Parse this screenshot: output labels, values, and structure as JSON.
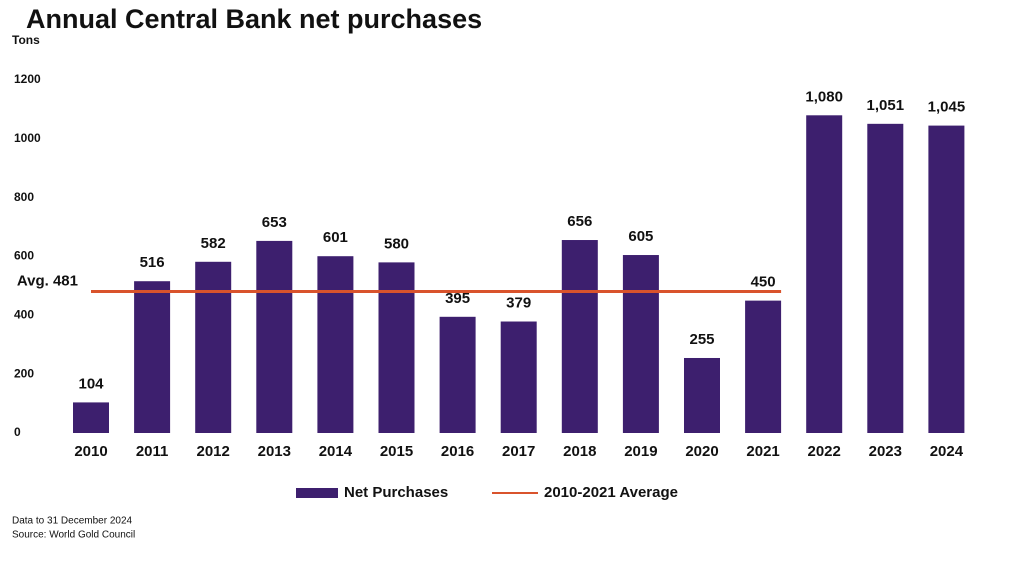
{
  "chart_data": {
    "type": "bar",
    "title": "Annual Central Bank net purchases",
    "y_label": "Tons",
    "categories": [
      "2010",
      "2011",
      "2012",
      "2013",
      "2014",
      "2015",
      "2016",
      "2017",
      "2018",
      "2019",
      "2020",
      "2021",
      "2022",
      "2023",
      "2024"
    ],
    "series": [
      {
        "name": "Net Purchases",
        "color": "#3d1f6e",
        "values": [
          104,
          516,
          582,
          653,
          601,
          580,
          395,
          379,
          656,
          605,
          255,
          450,
          1080,
          1051,
          1045
        ],
        "value_labels": [
          "104",
          "516",
          "582",
          "653",
          "601",
          "580",
          "395",
          "379",
          "656",
          "605",
          "255",
          "450",
          "1,080",
          "1,051",
          "1,045"
        ]
      }
    ],
    "average": {
      "name": "2010-2021 Average",
      "value": 481,
      "label": "Avg. 481",
      "color": "#d9532c",
      "from": "2010",
      "to": "2021"
    },
    "ylim": [
      0,
      1200
    ],
    "yticks": [
      0,
      200,
      400,
      600,
      800,
      1000,
      1200
    ],
    "grid": false,
    "notes": [
      "Data to 31 December 2024",
      "Source: World Gold Council"
    ]
  }
}
